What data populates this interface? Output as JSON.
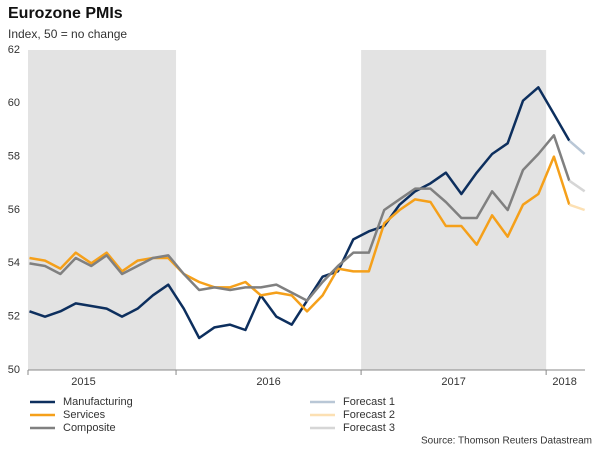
{
  "chart_data": {
    "type": "line",
    "title": "Eurozone PMIs",
    "subtitle": "Index, 50 = no change",
    "source": "Source: Thomson Reuters Datastream",
    "x": [
      2015.208,
      2015.292,
      2015.375,
      2015.458,
      2015.542,
      2015.625,
      2015.708,
      2015.792,
      2015.875,
      2015.958,
      2016.042,
      2016.125,
      2016.208,
      2016.292,
      2016.375,
      2016.458,
      2016.542,
      2016.625,
      2016.708,
      2016.792,
      2016.875,
      2016.958,
      2017.042,
      2017.125,
      2017.208,
      2017.292,
      2017.375,
      2017.458,
      2017.542,
      2017.625,
      2017.708,
      2017.792,
      2017.875,
      2017.958,
      2018.042,
      2018.125
    ],
    "series": [
      {
        "name": "Manufacturing",
        "color": "#0d2f5e",
        "values": [
          52.2,
          52.0,
          52.2,
          52.5,
          52.4,
          52.3,
          52.0,
          52.3,
          52.8,
          53.2,
          52.3,
          51.2,
          51.6,
          51.7,
          51.5,
          52.8,
          52.0,
          51.7,
          52.6,
          53.5,
          53.7,
          54.9,
          55.2,
          55.4,
          56.2,
          56.7,
          57.0,
          57.4,
          56.6,
          57.4,
          58.1,
          58.5,
          60.1,
          60.6,
          59.6,
          58.6
        ]
      },
      {
        "name": "Services",
        "color": "#f5a01a",
        "values": [
          54.2,
          54.1,
          53.8,
          54.4,
          54.0,
          54.4,
          53.7,
          54.1,
          54.2,
          54.2,
          53.6,
          53.3,
          53.1,
          53.1,
          53.3,
          52.8,
          52.9,
          52.8,
          52.2,
          52.8,
          53.8,
          53.7,
          53.7,
          55.5,
          56.0,
          56.4,
          56.3,
          55.4,
          55.4,
          54.7,
          55.8,
          55.0,
          56.2,
          56.6,
          58.0,
          56.2
        ]
      },
      {
        "name": "Composite",
        "color": "#808080",
        "values": [
          54.0,
          53.9,
          53.6,
          54.2,
          53.9,
          54.3,
          53.6,
          53.9,
          54.2,
          54.3,
          53.6,
          53.0,
          53.1,
          53.0,
          53.1,
          53.1,
          53.2,
          52.9,
          52.6,
          53.3,
          53.9,
          54.4,
          54.4,
          56.0,
          56.4,
          56.8,
          56.8,
          56.3,
          55.7,
          55.7,
          56.7,
          56.0,
          57.5,
          58.1,
          58.8,
          57.1
        ]
      },
      {
        "name": "Forecast 1",
        "color": "#b9c7d6",
        "x": [
          2018.125,
          2018.208
        ],
        "values": [
          58.6,
          58.1
        ]
      },
      {
        "name": "Forecast 2",
        "color": "#fce0b3",
        "x": [
          2018.125,
          2018.208
        ],
        "values": [
          56.2,
          56.0
        ]
      },
      {
        "name": "Forecast 3",
        "color": "#d6d6d6",
        "x": [
          2018.125,
          2018.208
        ],
        "values": [
          57.1,
          56.7
        ]
      }
    ],
    "xlim": [
      2015.2,
      2018.21
    ],
    "xticks": [
      {
        "value": 2015.5,
        "label": "2015"
      },
      {
        "value": 2016.5,
        "label": "2016"
      },
      {
        "value": 2017.5,
        "label": "2017"
      },
      {
        "value": 2018.1,
        "label": "2018"
      }
    ],
    "shaded": [
      [
        2015.2,
        2016
      ],
      [
        2017,
        2018
      ]
    ],
    "ylim": [
      50,
      62
    ],
    "yticks": [
      50,
      52,
      54,
      56,
      58,
      60,
      62
    ],
    "grid": false
  }
}
